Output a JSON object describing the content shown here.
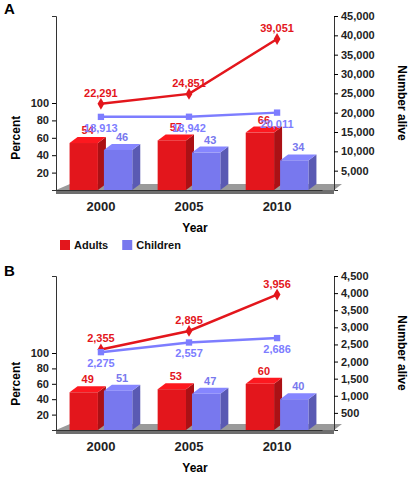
{
  "chart_data": [
    {
      "type": "bar",
      "title": "A",
      "x_label": "Year",
      "y_label": "Percent",
      "y2_label": "Number alive",
      "categories": [
        "2000",
        "2005",
        "2010"
      ],
      "series": [
        {
          "name": "Adults",
          "type": "bar",
          "color": "#e3161c",
          "values": [
            54,
            57,
            66
          ]
        },
        {
          "name": "Children",
          "type": "bar",
          "color": "#7878ee",
          "values": [
            46,
            43,
            34
          ]
        },
        {
          "type": "line",
          "axis": "y2",
          "color": "#e3161c",
          "marker": "diamond",
          "values": [
            22291,
            24851,
            39051
          ],
          "value_labels": [
            "22,291",
            "24,851",
            "39,051"
          ]
        },
        {
          "type": "line",
          "axis": "y2",
          "color": "#7d7dff",
          "marker": "square",
          "values": [
            18913,
            18942,
            20011
          ],
          "value_labels": [
            "18,913",
            "18,942",
            "20,011"
          ]
        }
      ],
      "ylim": [
        0,
        200
      ],
      "yticks": [
        20,
        40,
        60,
        80,
        100
      ],
      "y2lim": [
        0,
        45000
      ],
      "y2ticks": [
        {
          "value": 5000,
          "label": "5,000"
        },
        {
          "value": 10000,
          "label": "10,000"
        },
        {
          "value": 15000,
          "label": "15,000"
        },
        {
          "value": 20000,
          "label": "20,000"
        },
        {
          "value": 25000,
          "label": "25,000"
        },
        {
          "value": 30000,
          "label": "30,000"
        },
        {
          "value": 35000,
          "label": "35,000"
        },
        {
          "value": 40000,
          "label": "40,000"
        },
        {
          "value": 45000,
          "label": "45,000"
        }
      ],
      "data_labels": true,
      "legend": "bottom"
    },
    {
      "type": "bar",
      "title": "B",
      "x_label": "Year",
      "y_label": "Percent",
      "y2_label": "Number alive",
      "categories": [
        "2000",
        "2005",
        "2010"
      ],
      "series": [
        {
          "type": "bar",
          "color": "#e3161c",
          "values": [
            49,
            53,
            60
          ]
        },
        {
          "type": "bar",
          "color": "#7878ee",
          "values": [
            51,
            47,
            40
          ]
        },
        {
          "type": "line",
          "axis": "y2",
          "color": "#e3161c",
          "marker": "diamond",
          "values": [
            2355,
            2895,
            3956
          ],
          "value_labels": [
            "2,355",
            "2,895",
            "3,956"
          ]
        },
        {
          "type": "line",
          "axis": "y2",
          "color": "#7d7dff",
          "marker": "square",
          "values": [
            2275,
            2557,
            2686
          ],
          "value_labels": [
            "2,275",
            "2,557",
            "2,686"
          ]
        }
      ],
      "ylim": [
        0,
        200
      ],
      "yticks": [
        20,
        40,
        60,
        80,
        100
      ],
      "y2lim": [
        0,
        4500
      ],
      "y2ticks": [
        500,
        {
          "value": 1000,
          "label": "1,000"
        },
        {
          "value": 1500,
          "label": "1,500"
        },
        {
          "value": 2000,
          "label": "2,000"
        },
        {
          "value": 2500,
          "label": "2,500"
        },
        {
          "value": 3000,
          "label": "3,000"
        },
        {
          "value": 3500,
          "label": "3,500"
        },
        {
          "value": 4000,
          "label": "4,000"
        },
        {
          "value": 4500,
          "label": "4,500"
        }
      ],
      "data_labels": true
    }
  ]
}
